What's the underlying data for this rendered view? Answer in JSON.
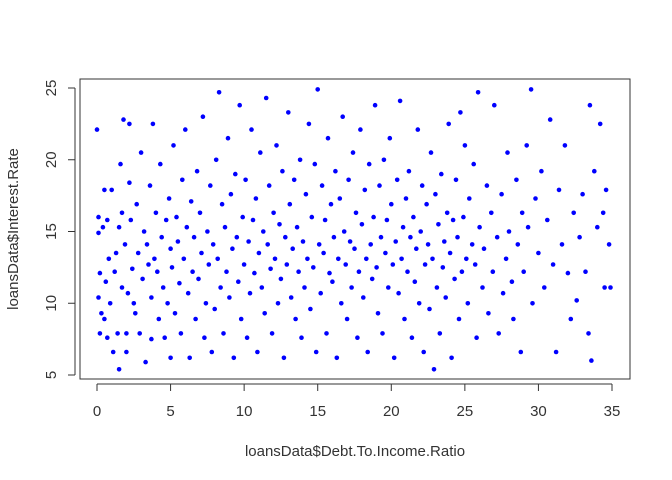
{
  "chart_data": {
    "type": "scatter",
    "title": "",
    "xlabel": "loansData$Debt.To.Income.Ratio",
    "ylabel": "loansData$Interest.Rate",
    "xlim": [
      0,
      35
    ],
    "ylim": [
      5,
      25
    ],
    "xticks": [
      "0",
      "5",
      "10",
      "15",
      "20",
      "25",
      "30",
      "35"
    ],
    "yticks": [
      "5",
      "10",
      "15",
      "20",
      "25"
    ],
    "grid": false,
    "legend": "none",
    "point_color": "#0000ff",
    "series": [
      {
        "points": [
          [
            0.0,
            22.1
          ],
          [
            0.1,
            16.0
          ],
          [
            0.1,
            14.9
          ],
          [
            0.1,
            10.4
          ],
          [
            0.2,
            7.9
          ],
          [
            0.2,
            12.1
          ],
          [
            0.3,
            9.3
          ],
          [
            0.4,
            15.3
          ],
          [
            0.5,
            8.9
          ],
          [
            0.5,
            17.9
          ],
          [
            0.6,
            11.5
          ],
          [
            0.7,
            15.8
          ],
          [
            0.7,
            7.6
          ],
          [
            0.8,
            13.1
          ],
          [
            0.9,
            10.0
          ],
          [
            1.0,
            17.9
          ],
          [
            1.1,
            6.6
          ],
          [
            1.2,
            12.2
          ],
          [
            1.3,
            13.5
          ],
          [
            1.4,
            7.9
          ],
          [
            1.5,
            15.3
          ],
          [
            1.5,
            5.4
          ],
          [
            1.6,
            19.7
          ],
          [
            1.7,
            11.1
          ],
          [
            1.7,
            16.3
          ],
          [
            1.8,
            22.8
          ],
          [
            1.9,
            14.1
          ],
          [
            2.0,
            6.6
          ],
          [
            2.0,
            7.9
          ],
          [
            2.1,
            10.7
          ],
          [
            2.2,
            18.4
          ],
          [
            2.2,
            22.5
          ],
          [
            2.3,
            15.8
          ],
          [
            2.4,
            12.4
          ],
          [
            2.5,
            10.0
          ],
          [
            2.6,
            9.3
          ],
          [
            2.7,
            16.9
          ],
          [
            2.8,
            13.5
          ],
          [
            2.9,
            7.9
          ],
          [
            3.0,
            20.5
          ],
          [
            3.1,
            11.7
          ],
          [
            3.2,
            15.0
          ],
          [
            3.3,
            5.9
          ],
          [
            3.4,
            14.1
          ],
          [
            3.5,
            12.7
          ],
          [
            3.6,
            18.2
          ],
          [
            3.7,
            10.4
          ],
          [
            3.7,
            7.5
          ],
          [
            3.8,
            22.5
          ],
          [
            3.9,
            13.1
          ],
          [
            4.0,
            16.3
          ],
          [
            4.1,
            12.2
          ],
          [
            4.2,
            8.9
          ],
          [
            4.3,
            19.7
          ],
          [
            4.4,
            14.6
          ],
          [
            4.5,
            11.1
          ],
          [
            4.6,
            7.6
          ],
          [
            4.7,
            15.8
          ],
          [
            4.8,
            10.0
          ],
          [
            4.9,
            17.3
          ],
          [
            5.0,
            13.8
          ],
          [
            5.0,
            6.2
          ],
          [
            5.1,
            12.5
          ],
          [
            5.2,
            21.0
          ],
          [
            5.3,
            9.3
          ],
          [
            5.4,
            16.0
          ],
          [
            5.5,
            14.3
          ],
          [
            5.6,
            11.4
          ],
          [
            5.7,
            7.9
          ],
          [
            5.8,
            18.6
          ],
          [
            5.9,
            13.1
          ],
          [
            6.0,
            22.1
          ],
          [
            6.1,
            15.3
          ],
          [
            6.2,
            10.7
          ],
          [
            6.3,
            6.2
          ],
          [
            6.4,
            17.1
          ],
          [
            6.5,
            12.2
          ],
          [
            6.6,
            14.6
          ],
          [
            6.7,
            8.9
          ],
          [
            6.8,
            19.2
          ],
          [
            6.9,
            11.7
          ],
          [
            7.0,
            16.3
          ],
          [
            7.1,
            13.5
          ],
          [
            7.2,
            23.0
          ],
          [
            7.3,
            7.6
          ],
          [
            7.4,
            10.0
          ],
          [
            7.5,
            15.0
          ],
          [
            7.6,
            12.7
          ],
          [
            7.7,
            18.2
          ],
          [
            7.8,
            6.6
          ],
          [
            7.9,
            14.1
          ],
          [
            8.0,
            9.6
          ],
          [
            8.1,
            20.0
          ],
          [
            8.2,
            13.1
          ],
          [
            8.3,
            24.7
          ],
          [
            8.4,
            11.1
          ],
          [
            8.5,
            16.9
          ],
          [
            8.6,
            7.9
          ],
          [
            8.7,
            15.3
          ],
          [
            8.8,
            12.2
          ],
          [
            8.9,
            21.5
          ],
          [
            9.0,
            10.4
          ],
          [
            9.1,
            17.6
          ],
          [
            9.2,
            13.8
          ],
          [
            9.3,
            6.2
          ],
          [
            9.4,
            19.0
          ],
          [
            9.5,
            14.6
          ],
          [
            9.6,
            11.5
          ],
          [
            9.7,
            23.8
          ],
          [
            9.8,
            8.9
          ],
          [
            9.9,
            16.0
          ],
          [
            10.0,
            12.7
          ],
          [
            10.1,
            18.6
          ],
          [
            10.2,
            7.6
          ],
          [
            10.3,
            14.3
          ],
          [
            10.4,
            10.7
          ],
          [
            10.5,
            22.1
          ],
          [
            10.6,
            15.8
          ],
          [
            10.7,
            12.1
          ],
          [
            10.8,
            17.3
          ],
          [
            10.9,
            6.6
          ],
          [
            11.0,
            13.5
          ],
          [
            11.1,
            20.5
          ],
          [
            11.2,
            11.1
          ],
          [
            11.3,
            15.0
          ],
          [
            11.4,
            9.3
          ],
          [
            11.5,
            24.3
          ],
          [
            11.6,
            14.1
          ],
          [
            11.7,
            18.2
          ],
          [
            11.8,
            12.4
          ],
          [
            11.9,
            7.9
          ],
          [
            12.0,
            16.3
          ],
          [
            12.1,
            13.1
          ],
          [
            12.2,
            21.0
          ],
          [
            12.3,
            10.0
          ],
          [
            12.4,
            15.5
          ],
          [
            12.5,
            11.7
          ],
          [
            12.6,
            19.2
          ],
          [
            12.7,
            6.2
          ],
          [
            12.8,
            14.6
          ],
          [
            12.9,
            12.7
          ],
          [
            13.0,
            23.3
          ],
          [
            13.1,
            16.9
          ],
          [
            13.2,
            10.4
          ],
          [
            13.3,
            13.8
          ],
          [
            13.4,
            18.6
          ],
          [
            13.5,
            8.9
          ],
          [
            13.6,
            15.3
          ],
          [
            13.7,
            12.2
          ],
          [
            13.8,
            20.0
          ],
          [
            13.9,
            7.6
          ],
          [
            14.0,
            14.3
          ],
          [
            14.1,
            11.1
          ],
          [
            14.2,
            17.6
          ],
          [
            14.3,
            13.1
          ],
          [
            14.4,
            22.5
          ],
          [
            14.5,
            9.6
          ],
          [
            14.6,
            16.0
          ],
          [
            14.7,
            12.5
          ],
          [
            14.8,
            19.7
          ],
          [
            14.9,
            6.6
          ],
          [
            15.0,
            24.9
          ],
          [
            15.1,
            14.1
          ],
          [
            15.2,
            10.7
          ],
          [
            15.3,
            18.2
          ],
          [
            15.4,
            13.5
          ],
          [
            15.5,
            15.8
          ],
          [
            15.6,
            7.9
          ],
          [
            15.7,
            21.5
          ],
          [
            15.8,
            12.1
          ],
          [
            15.9,
            16.9
          ],
          [
            16.0,
            11.5
          ],
          [
            16.1,
            14.6
          ],
          [
            16.2,
            19.2
          ],
          [
            16.3,
            6.2
          ],
          [
            16.4,
            13.1
          ],
          [
            16.5,
            17.3
          ],
          [
            16.6,
            10.0
          ],
          [
            16.7,
            23.0
          ],
          [
            16.8,
            15.0
          ],
          [
            16.9,
            12.7
          ],
          [
            17.0,
            8.9
          ],
          [
            17.1,
            18.6
          ],
          [
            17.2,
            14.3
          ],
          [
            17.3,
            11.1
          ],
          [
            17.4,
            20.5
          ],
          [
            17.5,
            13.8
          ],
          [
            17.6,
            16.3
          ],
          [
            17.7,
            7.6
          ],
          [
            17.8,
            12.2
          ],
          [
            17.9,
            22.1
          ],
          [
            18.0,
            15.5
          ],
          [
            18.1,
            10.4
          ],
          [
            18.2,
            17.9
          ],
          [
            18.3,
            13.1
          ],
          [
            18.4,
            6.6
          ],
          [
            18.5,
            19.7
          ],
          [
            18.6,
            14.1
          ],
          [
            18.7,
            11.7
          ],
          [
            18.8,
            16.0
          ],
          [
            18.9,
            23.8
          ],
          [
            19.0,
            12.5
          ],
          [
            19.1,
            9.3
          ],
          [
            19.2,
            18.2
          ],
          [
            19.3,
            14.6
          ],
          [
            19.4,
            7.9
          ],
          [
            19.5,
            20.0
          ],
          [
            19.6,
            13.5
          ],
          [
            19.7,
            15.8
          ],
          [
            19.8,
            11.1
          ],
          [
            19.9,
            21.5
          ],
          [
            20.0,
            16.9
          ],
          [
            20.1,
            12.7
          ],
          [
            20.2,
            6.2
          ],
          [
            20.3,
            14.3
          ],
          [
            20.4,
            18.6
          ],
          [
            20.5,
            10.7
          ],
          [
            20.6,
            24.1
          ],
          [
            20.7,
            13.1
          ],
          [
            20.8,
            15.3
          ],
          [
            20.9,
            8.9
          ],
          [
            21.0,
            17.3
          ],
          [
            21.1,
            12.2
          ],
          [
            21.2,
            19.2
          ],
          [
            21.3,
            14.6
          ],
          [
            21.4,
            7.6
          ],
          [
            21.5,
            16.0
          ],
          [
            21.6,
            11.5
          ],
          [
            21.7,
            13.8
          ],
          [
            21.8,
            22.1
          ],
          [
            21.9,
            10.0
          ],
          [
            22.0,
            15.0
          ],
          [
            22.1,
            18.2
          ],
          [
            22.2,
            6.6
          ],
          [
            22.3,
            12.7
          ],
          [
            22.4,
            16.9
          ],
          [
            22.5,
            14.1
          ],
          [
            22.6,
            9.6
          ],
          [
            22.7,
            20.5
          ],
          [
            22.8,
            13.1
          ],
          [
            22.9,
            5.4
          ],
          [
            23.0,
            17.6
          ],
          [
            23.1,
            11.1
          ],
          [
            23.2,
            15.5
          ],
          [
            23.3,
            7.9
          ],
          [
            23.4,
            19.0
          ],
          [
            23.5,
            12.5
          ],
          [
            23.6,
            14.3
          ],
          [
            23.7,
            10.4
          ],
          [
            23.8,
            16.3
          ],
          [
            23.9,
            22.5
          ],
          [
            24.0,
            13.5
          ],
          [
            24.1,
            6.2
          ],
          [
            24.2,
            15.8
          ],
          [
            24.3,
            11.7
          ],
          [
            24.4,
            18.6
          ],
          [
            24.5,
            14.6
          ],
          [
            24.6,
            8.9
          ],
          [
            24.7,
            23.3
          ],
          [
            24.8,
            12.2
          ],
          [
            24.9,
            16.0
          ],
          [
            25.0,
            21.0
          ],
          [
            25.1,
            13.1
          ],
          [
            25.2,
            10.0
          ],
          [
            25.3,
            17.3
          ],
          [
            25.5,
            14.1
          ],
          [
            25.6,
            19.7
          ],
          [
            25.7,
            12.7
          ],
          [
            25.8,
            7.6
          ],
          [
            25.9,
            24.7
          ],
          [
            26.0,
            15.3
          ],
          [
            26.2,
            11.1
          ],
          [
            26.3,
            13.8
          ],
          [
            26.5,
            18.2
          ],
          [
            26.6,
            9.3
          ],
          [
            26.8,
            16.3
          ],
          [
            26.9,
            12.2
          ],
          [
            27.0,
            23.8
          ],
          [
            27.2,
            14.6
          ],
          [
            27.3,
            7.9
          ],
          [
            27.5,
            17.6
          ],
          [
            27.6,
            10.7
          ],
          [
            27.8,
            13.1
          ],
          [
            27.9,
            20.5
          ],
          [
            28.0,
            15.0
          ],
          [
            28.2,
            11.5
          ],
          [
            28.3,
            8.9
          ],
          [
            28.5,
            18.6
          ],
          [
            28.6,
            14.1
          ],
          [
            28.8,
            6.6
          ],
          [
            28.9,
            16.3
          ],
          [
            29.0,
            12.2
          ],
          [
            29.2,
            21.0
          ],
          [
            29.3,
            15.3
          ],
          [
            29.5,
            24.9
          ],
          [
            29.6,
            10.0
          ],
          [
            29.8,
            17.3
          ],
          [
            30.0,
            13.5
          ],
          [
            30.2,
            19.2
          ],
          [
            30.4,
            11.1
          ],
          [
            30.6,
            15.8
          ],
          [
            30.8,
            22.8
          ],
          [
            31.0,
            12.7
          ],
          [
            31.2,
            6.6
          ],
          [
            31.4,
            17.9
          ],
          [
            31.6,
            14.1
          ],
          [
            31.8,
            21.0
          ],
          [
            32.0,
            12.1
          ],
          [
            32.2,
            8.9
          ],
          [
            32.4,
            16.3
          ],
          [
            32.6,
            10.2
          ],
          [
            32.8,
            14.6
          ],
          [
            33.0,
            17.6
          ],
          [
            33.2,
            12.2
          ],
          [
            33.4,
            7.9
          ],
          [
            33.5,
            23.8
          ],
          [
            33.6,
            6.0
          ],
          [
            33.8,
            19.2
          ],
          [
            34.0,
            15.3
          ],
          [
            34.2,
            22.5
          ],
          [
            34.4,
            16.3
          ],
          [
            34.5,
            11.1
          ],
          [
            34.6,
            17.9
          ],
          [
            34.8,
            14.1
          ],
          [
            34.9,
            11.1
          ]
        ]
      }
    ]
  }
}
